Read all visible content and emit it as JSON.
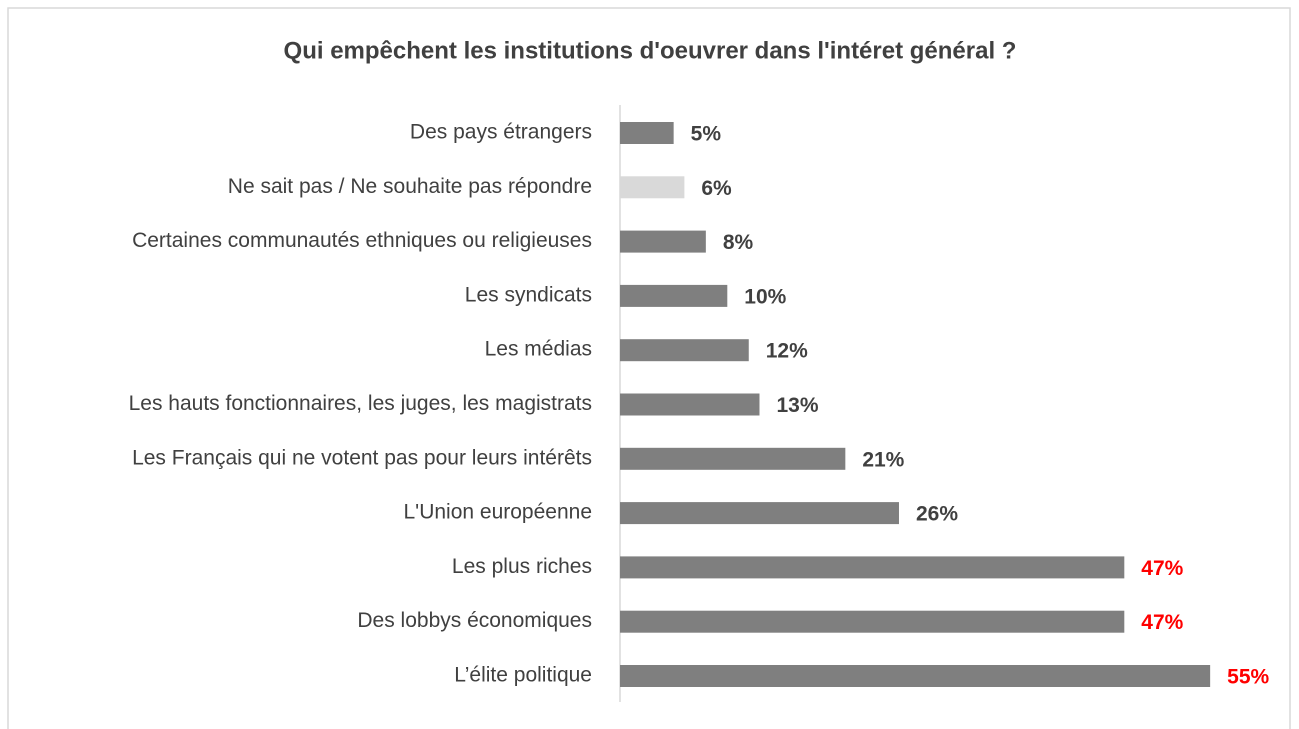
{
  "chart_data": {
    "type": "hbar",
    "title": "Qui empêchent les institutions d'oeuvrer dans l'intéret général ?",
    "categories": [
      "Des pays étrangers",
      "Ne sait pas / Ne souhaite pas répondre",
      "Certaines communautés ethniques ou religieuses",
      "Les syndicats",
      "Les médias",
      "Les hauts fonctionnaires, les juges, les magistrats",
      "Les Français qui ne votent pas pour leurs intérêts",
      "L'Union européenne",
      "Les plus riches",
      "Des lobbys économiques",
      "L’élite politique"
    ],
    "values": [
      5,
      6,
      8,
      10,
      12,
      13,
      21,
      26,
      47,
      47,
      55
    ],
    "value_labels": [
      "5%",
      "6%",
      "8%",
      "10%",
      "12%",
      "13%",
      "21%",
      "26%",
      "47%",
      "47%",
      "55%"
    ],
    "colors": [
      "#7f7f7f",
      "#d9d9d9",
      "#7f7f7f",
      "#7f7f7f",
      "#7f7f7f",
      "#7f7f7f",
      "#7f7f7f",
      "#7f7f7f",
      "#7f7f7f",
      "#7f7f7f",
      "#7f7f7f"
    ],
    "label_colors": [
      "#404040",
      "#404040",
      "#404040",
      "#404040",
      "#404040",
      "#404040",
      "#404040",
      "#404040",
      "#ff0000",
      "#ff0000",
      "#ff0000"
    ]
  }
}
